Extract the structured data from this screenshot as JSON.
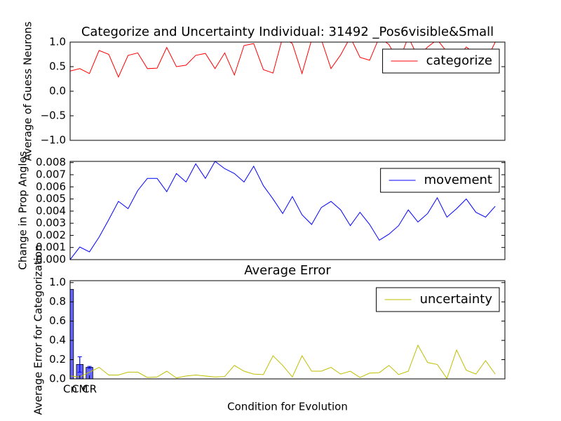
{
  "chart_data": [
    {
      "type": "line",
      "title": "Categorize and Uncertainty Individual: 31492 _Pos6visible&Small",
      "y_label": "Average of Guess Neurons",
      "x": [
        0,
        1,
        2,
        3,
        4,
        5,
        6,
        7,
        8,
        9,
        10,
        11,
        12,
        13,
        14,
        15,
        16,
        17,
        18,
        19,
        20,
        21,
        22,
        23,
        24,
        25,
        26,
        27,
        28,
        29,
        30,
        31,
        32,
        33,
        34,
        35,
        36,
        37,
        38,
        39,
        40,
        41,
        42,
        43,
        44
      ],
      "xlim": [
        0,
        45
      ],
      "ylim": [
        -1,
        1
      ],
      "yticks": [
        {
          "value": -1,
          "label": "−1.0"
        },
        {
          "value": -0.5,
          "label": "−0.5"
        },
        {
          "value": 0,
          "label": "0.0"
        },
        {
          "value": 0.5,
          "label": "0.5"
        },
        {
          "value": 1,
          "label": "1.0"
        }
      ],
      "legend": "upper right",
      "series": [
        {
          "name": "categorize",
          "color": "#ff0000",
          "values": [
            0.41,
            0.46,
            0.36,
            0.83,
            0.75,
            0.29,
            0.73,
            0.78,
            0.46,
            0.47,
            0.89,
            0.5,
            0.53,
            0.73,
            0.77,
            0.46,
            0.78,
            0.33,
            0.93,
            0.97,
            0.44,
            0.37,
            1.1,
            0.97,
            0.36,
            1.05,
            1.05,
            0.46,
            0.74,
            1.1,
            0.69,
            0.63,
            1.1,
            0.95,
            0.6,
            1.1,
            0.7,
            0.9,
            1.05,
            0.8,
            0.65,
            0.9,
            0.75,
            0.6,
            1.0
          ]
        }
      ]
    },
    {
      "type": "line",
      "y_label": "Change in Prop Angles",
      "x": [
        0,
        1,
        2,
        3,
        4,
        5,
        6,
        7,
        8,
        9,
        10,
        11,
        12,
        13,
        14,
        15,
        16,
        17,
        18,
        19,
        20,
        21,
        22,
        23,
        24,
        25,
        26,
        27,
        28,
        29,
        30,
        31,
        32,
        33,
        34,
        35,
        36,
        37,
        38,
        39,
        40,
        41,
        42,
        43,
        44
      ],
      "xlim": [
        0,
        45
      ],
      "ylim": [
        0,
        0.0081
      ],
      "yticks": [
        {
          "value": 0,
          "label": "0.000"
        },
        {
          "value": 0.001,
          "label": "0.001"
        },
        {
          "value": 0.002,
          "label": "0.002"
        },
        {
          "value": 0.003,
          "label": "0.003"
        },
        {
          "value": 0.004,
          "label": "0.004"
        },
        {
          "value": 0.005,
          "label": "0.005"
        },
        {
          "value": 0.006,
          "label": "0.006"
        },
        {
          "value": 0.007,
          "label": "0.007"
        },
        {
          "value": 0.008,
          "label": "0.008"
        }
      ],
      "legend": "upper right",
      "series": [
        {
          "name": "movement",
          "color": "#0000ff",
          "values": [
            0,
            0.00104,
            0.00064,
            0.00186,
            0.0033,
            0.0048,
            0.0042,
            0.0057,
            0.0067,
            0.0067,
            0.0056,
            0.0071,
            0.0064,
            0.0079,
            0.0067,
            0.0081,
            0.0075,
            0.0071,
            0.0064,
            0.0077,
            0.0061,
            0.005,
            0.0038,
            0.0052,
            0.0037,
            0.0029,
            0.0043,
            0.0048,
            0.0041,
            0.0028,
            0.0039,
            0.0029,
            0.0016,
            0.0021,
            0.0028,
            0.0041,
            0.0031,
            0.0038,
            0.0051,
            0.0035,
            0.0042,
            0.005,
            0.0039,
            0.0035,
            0.0044
          ]
        }
      ]
    },
    {
      "type": "combo",
      "title": "Average Error",
      "y_label": "Average Error for Categorization",
      "x_label": "Condition for Evolution",
      "x": [
        0,
        1,
        2,
        3,
        4,
        5,
        6,
        7,
        8,
        9,
        10,
        11,
        12,
        13,
        14,
        15,
        16,
        17,
        18,
        19,
        20,
        21,
        22,
        23,
        24,
        25,
        26,
        27,
        28,
        29,
        30,
        31,
        32,
        33,
        34,
        35,
        36,
        37,
        38,
        39,
        40,
        41,
        42,
        43,
        44
      ],
      "xlim": [
        0,
        45
      ],
      "ylim": [
        0,
        1.02
      ],
      "yticks": [
        {
          "value": 0,
          "label": "0.0"
        },
        {
          "value": 0.2,
          "label": "0.2"
        },
        {
          "value": 0.4,
          "label": "0.4"
        },
        {
          "value": 0.6,
          "label": "0.6"
        },
        {
          "value": 0.8,
          "label": "0.8"
        },
        {
          "value": 1,
          "label": "1.0"
        }
      ],
      "legend": "upper right",
      "bars": {
        "categories": [
          "Cn",
          "CM",
          "CR"
        ],
        "x": [
          0,
          1,
          2
        ],
        "values": [
          0.93,
          0.15,
          0.12
        ],
        "errors": [
          0,
          0.08,
          0.01
        ],
        "color": "#0000ff"
      },
      "series": [
        {
          "name": "uncertainty",
          "color": "#bfbf00",
          "values": [
            0.03,
            0.02,
            0.07,
            0.12,
            0.04,
            0.04,
            0.07,
            0.07,
            0.015,
            0.02,
            0.08,
            0.01,
            0.03,
            0.04,
            0.03,
            0.02,
            0.025,
            0.14,
            0.08,
            0.05,
            0.045,
            0.24,
            0.14,
            0.02,
            0.24,
            0.08,
            0.08,
            0.12,
            0.05,
            0.08,
            0.015,
            0.06,
            0.065,
            0.14,
            0.045,
            0.08,
            0.35,
            0.17,
            0.15,
            0.005,
            0.3,
            0.09,
            0.05,
            0.19,
            0.05
          ]
        }
      ]
    }
  ]
}
